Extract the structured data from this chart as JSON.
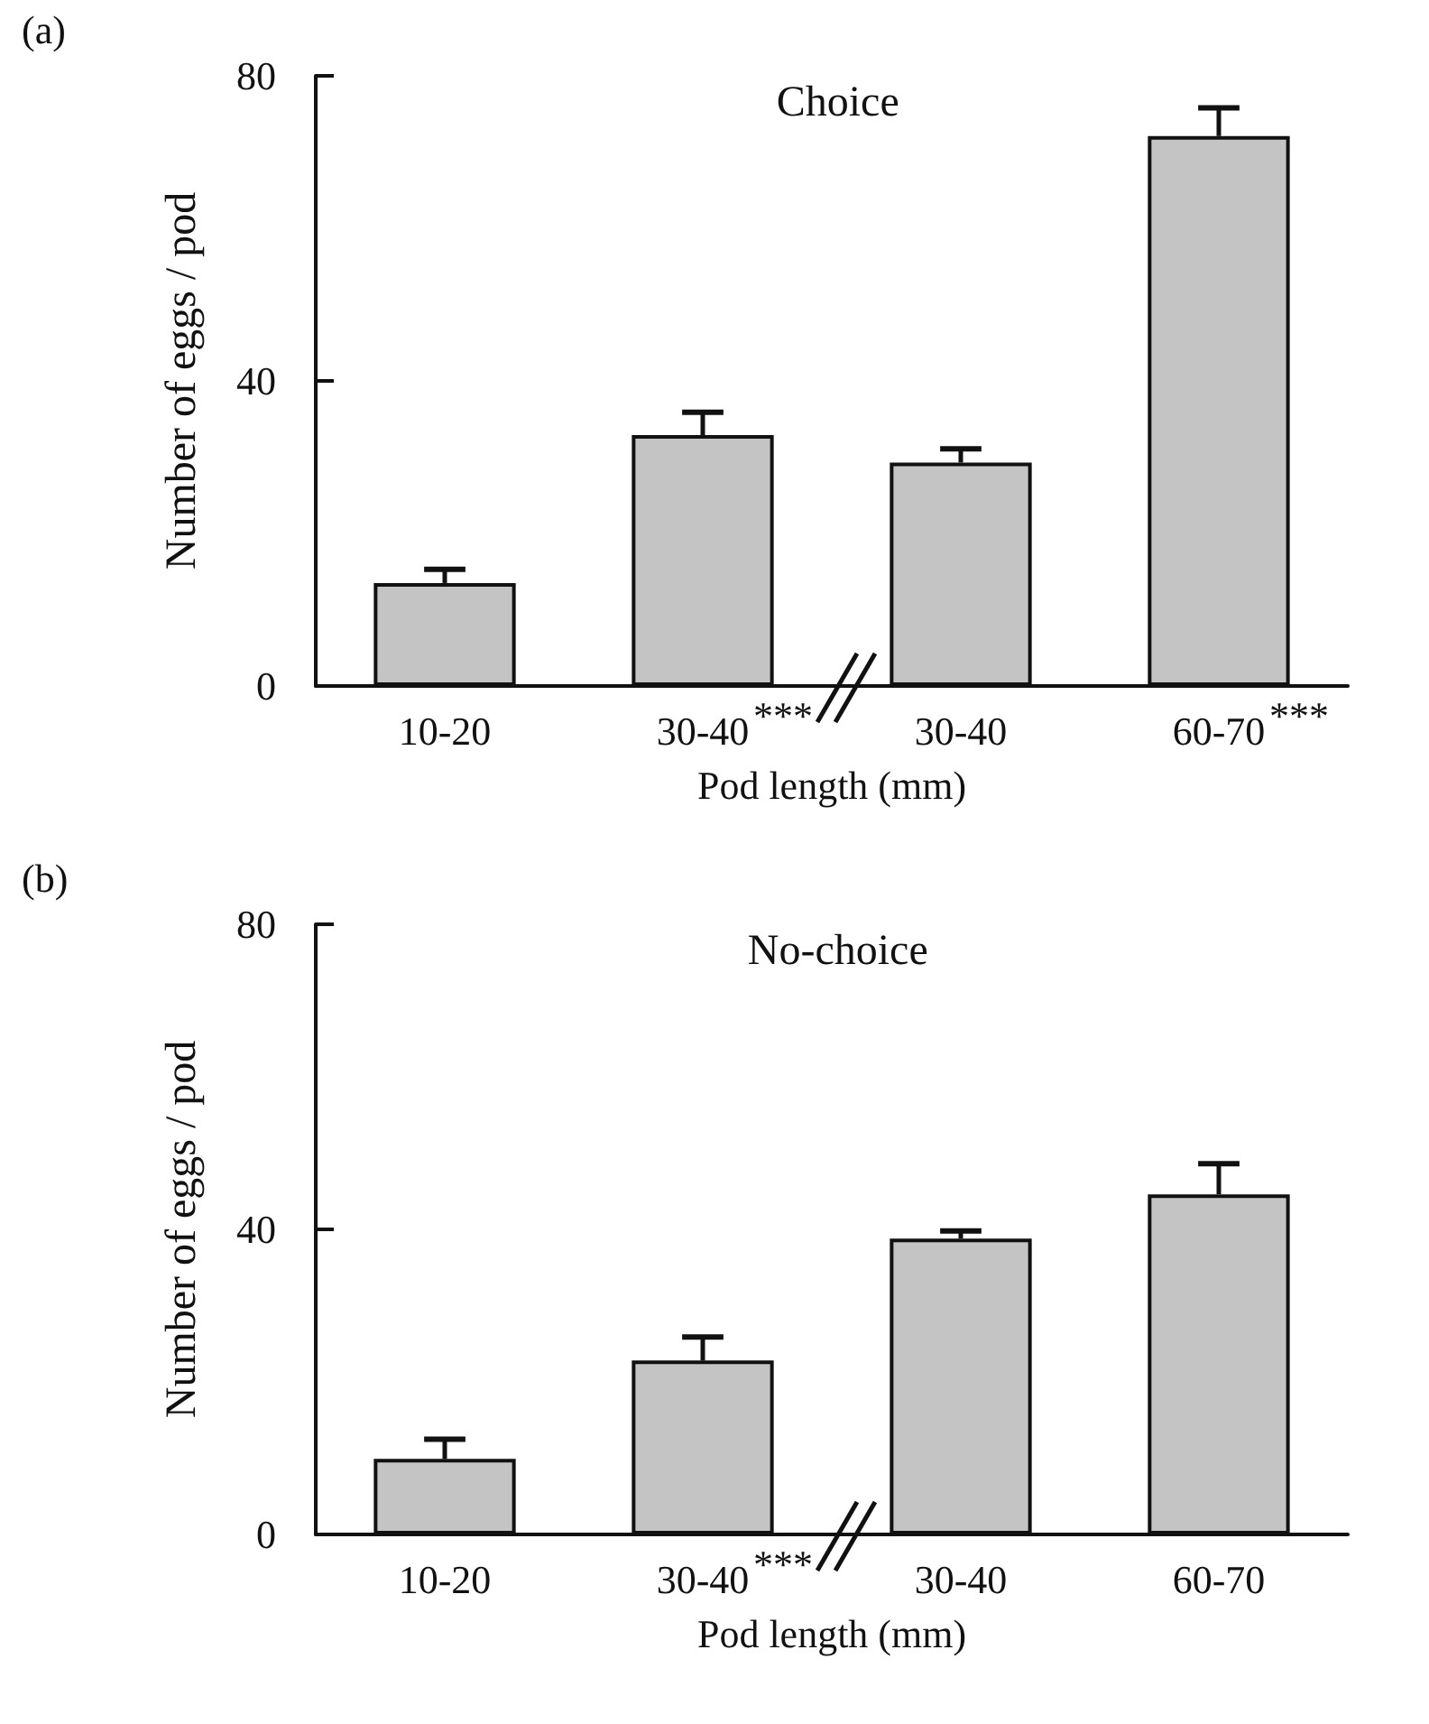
{
  "chart_data": [
    {
      "type": "bar",
      "title": "Choice",
      "xlabel": "Pod length (mm)",
      "ylabel": "Number of eggs / pod",
      "categories": [
        "10-20",
        "30-40",
        "30-40",
        "60-70"
      ],
      "values": [
        13.5,
        32.9,
        29.3,
        72.1
      ],
      "color": "#c4c4c4",
      "errors": [
        [
          13.5,
          15.3
        ],
        [
          32.9,
          35.9
        ],
        [
          29.3,
          31.1
        ],
        [
          72.1,
          75.8
        ]
      ],
      "ylim": [
        0,
        80
      ],
      "yticks": [
        0,
        40,
        80
      ],
      "grid": false,
      "annotations": [
        "(a)",
        "***",
        "***"
      ]
    },
    {
      "type": "bar",
      "title": "No-choice",
      "xlabel": "Pod length (mm)",
      "ylabel": "Number of eggs / pod",
      "categories": [
        "10-20",
        "30-40",
        "30-40",
        "60-70"
      ],
      "values": [
        9.9,
        22.8,
        38.8,
        44.6
      ],
      "color": "#c4c4c4",
      "errors": [
        [
          9.9,
          12.5
        ],
        [
          22.8,
          25.9
        ],
        [
          38.8,
          39.8
        ],
        [
          44.6,
          48.6
        ]
      ],
      "ylim": [
        0,
        80
      ],
      "yticks": [
        0,
        40,
        80
      ],
      "grid": false,
      "annotations": [
        "(b)",
        "***"
      ]
    }
  ]
}
